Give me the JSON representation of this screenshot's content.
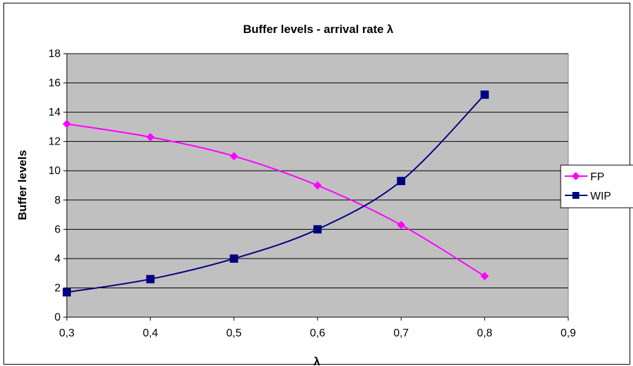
{
  "chart_data": {
    "type": "line",
    "title": "Buffer levels - arrival rate λ",
    "xlabel": "λ",
    "ylabel": "Buffer levels",
    "x_tick_labels": [
      "0,3",
      "0,4",
      "0,5",
      "0,6",
      "0,7",
      "0,8",
      "0,9"
    ],
    "x_ticks": [
      0.3,
      0.4,
      0.5,
      0.6,
      0.7,
      0.8,
      0.9
    ],
    "y_tick_labels": [
      "0",
      "2",
      "4",
      "6",
      "8",
      "10",
      "12",
      "14",
      "16",
      "18"
    ],
    "y_ticks": [
      0,
      2,
      4,
      6,
      8,
      10,
      12,
      14,
      16,
      18
    ],
    "xlim": [
      0.3,
      0.9
    ],
    "ylim": [
      0,
      18
    ],
    "grid": true,
    "legend_position": "right",
    "plot_background": "#c0c0c0",
    "series": [
      {
        "name": "FP",
        "color": "#ff00ff",
        "marker": "diamond",
        "x": [
          0.3,
          0.4,
          0.5,
          0.6,
          0.7,
          0.8
        ],
        "values": [
          13.2,
          12.3,
          11.0,
          9.0,
          6.3,
          2.8
        ]
      },
      {
        "name": "WIP",
        "color": "#000080",
        "marker": "square",
        "x": [
          0.3,
          0.4,
          0.5,
          0.6,
          0.7,
          0.8
        ],
        "values": [
          1.7,
          2.6,
          4.0,
          6.0,
          9.3,
          15.2
        ]
      }
    ]
  }
}
